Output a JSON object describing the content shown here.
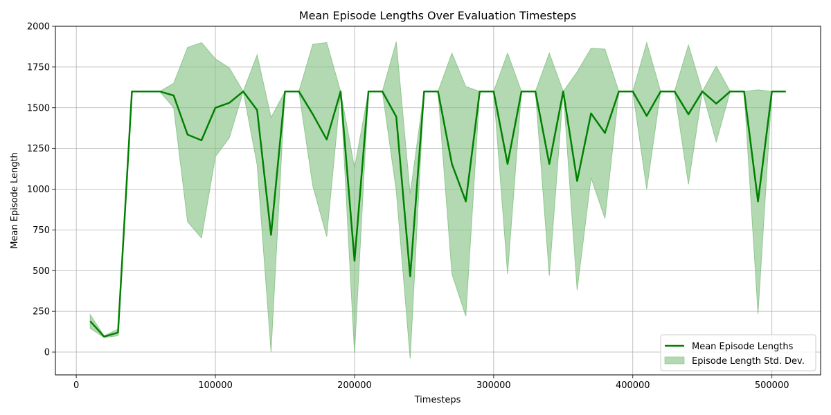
{
  "chart_data": {
    "type": "line",
    "title": "Mean Episode Lengths Over Evaluation Timesteps",
    "xlabel": "Timesteps",
    "ylabel": "Mean Episode Length",
    "xlim": [
      -15000,
      535000
    ],
    "ylim": [
      -140,
      2000
    ],
    "x_ticks": [
      0,
      100000,
      200000,
      300000,
      400000,
      500000
    ],
    "y_ticks": [
      0,
      250,
      500,
      750,
      1000,
      1250,
      1500,
      1750,
      2000
    ],
    "grid": true,
    "legend_position": "lower-right",
    "colors": {
      "line": "#008000",
      "band": "#7fbf7f"
    },
    "x": [
      10000,
      20000,
      30000,
      40000,
      50000,
      60000,
      70000,
      80000,
      90000,
      100000,
      110000,
      120000,
      130000,
      140000,
      150000,
      160000,
      170000,
      180000,
      190000,
      200000,
      210000,
      220000,
      230000,
      240000,
      250000,
      260000,
      270000,
      280000,
      290000,
      300000,
      310000,
      320000,
      330000,
      340000,
      350000,
      360000,
      370000,
      380000,
      390000,
      400000,
      410000,
      420000,
      430000,
      440000,
      450000,
      460000,
      470000,
      480000,
      490000,
      500000,
      510000
    ],
    "series": [
      {
        "name": "Mean Episode Lengths",
        "values": [
          190,
          95,
          120,
          1600,
          1600,
          1600,
          1575,
          1335,
          1300,
          1500,
          1530,
          1600,
          1485,
          720,
          1600,
          1600,
          1460,
          1305,
          1600,
          560,
          1600,
          1600,
          1445,
          465,
          1600,
          1600,
          1155,
          925,
          1600,
          1600,
          1155,
          1600,
          1600,
          1155,
          1600,
          1050,
          1465,
          1345,
          1600,
          1600,
          1450,
          1600,
          1600,
          1460,
          1600,
          1525,
          1600,
          1600,
          925,
          1600,
          1600
        ]
      },
      {
        "name": "Episode Length Std. Dev.",
        "lower": [
          145,
          90,
          100,
          1600,
          1600,
          1600,
          1500,
          800,
          700,
          1200,
          1315,
          1600,
          1150,
          0,
          1600,
          1600,
          1020,
          710,
          1600,
          -10,
          1600,
          1600,
          990,
          -40,
          1600,
          1600,
          480,
          220,
          1600,
          1600,
          480,
          1600,
          1600,
          470,
          1600,
          380,
          1070,
          820,
          1600,
          1600,
          1000,
          1600,
          1600,
          1030,
          1600,
          1290,
          1600,
          1600,
          235,
          1600,
          1600
        ],
        "upper": [
          230,
          100,
          140,
          1600,
          1600,
          1600,
          1650,
          1870,
          1900,
          1800,
          1745,
          1600,
          1825,
          1440,
          1600,
          1600,
          1890,
          1900,
          1600,
          1130,
          1600,
          1600,
          1905,
          970,
          1600,
          1600,
          1835,
          1630,
          1600,
          1600,
          1835,
          1600,
          1600,
          1835,
          1600,
          1720,
          1865,
          1860,
          1600,
          1600,
          1900,
          1600,
          1600,
          1885,
          1600,
          1755,
          1600,
          1600,
          1610,
          1600,
          1600
        ]
      }
    ]
  }
}
